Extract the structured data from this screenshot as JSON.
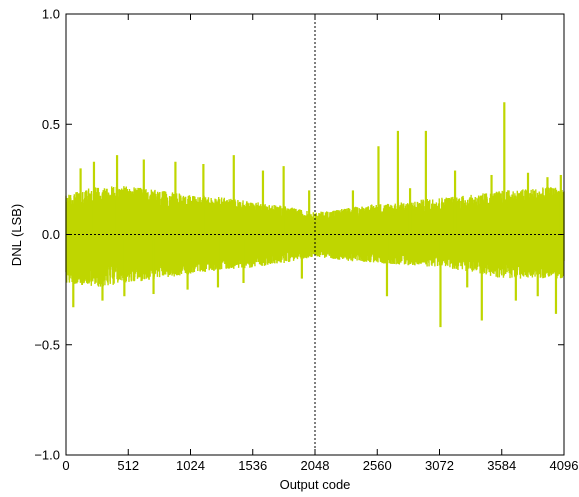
{
  "chart_data": {
    "type": "line",
    "xlabel": "Output code",
    "ylabel": "DNL (LSB)",
    "xlim": [
      0,
      4096
    ],
    "ylim": [
      -1.0,
      1.0
    ],
    "xticks": [
      0,
      512,
      1024,
      1536,
      2048,
      2560,
      3072,
      3584,
      4096
    ],
    "yticks": [
      -1.0,
      -0.5,
      0.0,
      0.5,
      1.0
    ],
    "ytick_labels": [
      "−1.0",
      "−0.5",
      "0.0",
      "0.5",
      "1.0"
    ],
    "reference_lines": {
      "y": 0.0,
      "x": 2048,
      "style": "dotted"
    },
    "grid": false,
    "series": [
      {
        "color": "#bfd600",
        "envelope": [
          {
            "x": 0,
            "min": -0.22,
            "max": 0.18
          },
          {
            "x": 256,
            "min": -0.24,
            "max": 0.22
          },
          {
            "x": 512,
            "min": -0.22,
            "max": 0.22
          },
          {
            "x": 768,
            "min": -0.2,
            "max": 0.2
          },
          {
            "x": 1024,
            "min": -0.18,
            "max": 0.18
          },
          {
            "x": 1280,
            "min": -0.16,
            "max": 0.17
          },
          {
            "x": 1536,
            "min": -0.15,
            "max": 0.15
          },
          {
            "x": 1792,
            "min": -0.13,
            "max": 0.13
          },
          {
            "x": 2048,
            "min": -0.1,
            "max": 0.1
          },
          {
            "x": 2304,
            "min": -0.12,
            "max": 0.12
          },
          {
            "x": 2560,
            "min": -0.13,
            "max": 0.14
          },
          {
            "x": 2816,
            "min": -0.14,
            "max": 0.15
          },
          {
            "x": 3072,
            "min": -0.15,
            "max": 0.17
          },
          {
            "x": 3328,
            "min": -0.17,
            "max": 0.18
          },
          {
            "x": 3584,
            "min": -0.2,
            "max": 0.2
          },
          {
            "x": 3840,
            "min": -0.2,
            "max": 0.21
          },
          {
            "x": 4096,
            "min": -0.2,
            "max": 0.22
          }
        ],
        "spikes": [
          {
            "x": 60,
            "y": -0.33
          },
          {
            "x": 120,
            "y": 0.3
          },
          {
            "x": 230,
            "y": 0.33
          },
          {
            "x": 300,
            "y": -0.3
          },
          {
            "x": 420,
            "y": 0.36
          },
          {
            "x": 480,
            "y": -0.28
          },
          {
            "x": 640,
            "y": 0.34
          },
          {
            "x": 720,
            "y": -0.27
          },
          {
            "x": 900,
            "y": 0.33
          },
          {
            "x": 1000,
            "y": -0.25
          },
          {
            "x": 1130,
            "y": 0.32
          },
          {
            "x": 1250,
            "y": -0.24
          },
          {
            "x": 1380,
            "y": 0.36
          },
          {
            "x": 1460,
            "y": -0.22
          },
          {
            "x": 1620,
            "y": 0.29
          },
          {
            "x": 1790,
            "y": 0.31
          },
          {
            "x": 1940,
            "y": -0.2
          },
          {
            "x": 2000,
            "y": 0.2
          },
          {
            "x": 2360,
            "y": 0.2
          },
          {
            "x": 2570,
            "y": 0.4
          },
          {
            "x": 2640,
            "y": -0.28
          },
          {
            "x": 2730,
            "y": 0.47
          },
          {
            "x": 2830,
            "y": 0.21
          },
          {
            "x": 2960,
            "y": 0.47
          },
          {
            "x": 3080,
            "y": -0.42
          },
          {
            "x": 3200,
            "y": 0.29
          },
          {
            "x": 3300,
            "y": -0.24
          },
          {
            "x": 3420,
            "y": -0.39
          },
          {
            "x": 3500,
            "y": 0.27
          },
          {
            "x": 3605,
            "y": 0.6
          },
          {
            "x": 3700,
            "y": -0.3
          },
          {
            "x": 3800,
            "y": 0.28
          },
          {
            "x": 3880,
            "y": -0.28
          },
          {
            "x": 3960,
            "y": 0.26
          },
          {
            "x": 4030,
            "y": -0.36
          },
          {
            "x": 4070,
            "y": 0.27
          }
        ]
      }
    ]
  }
}
